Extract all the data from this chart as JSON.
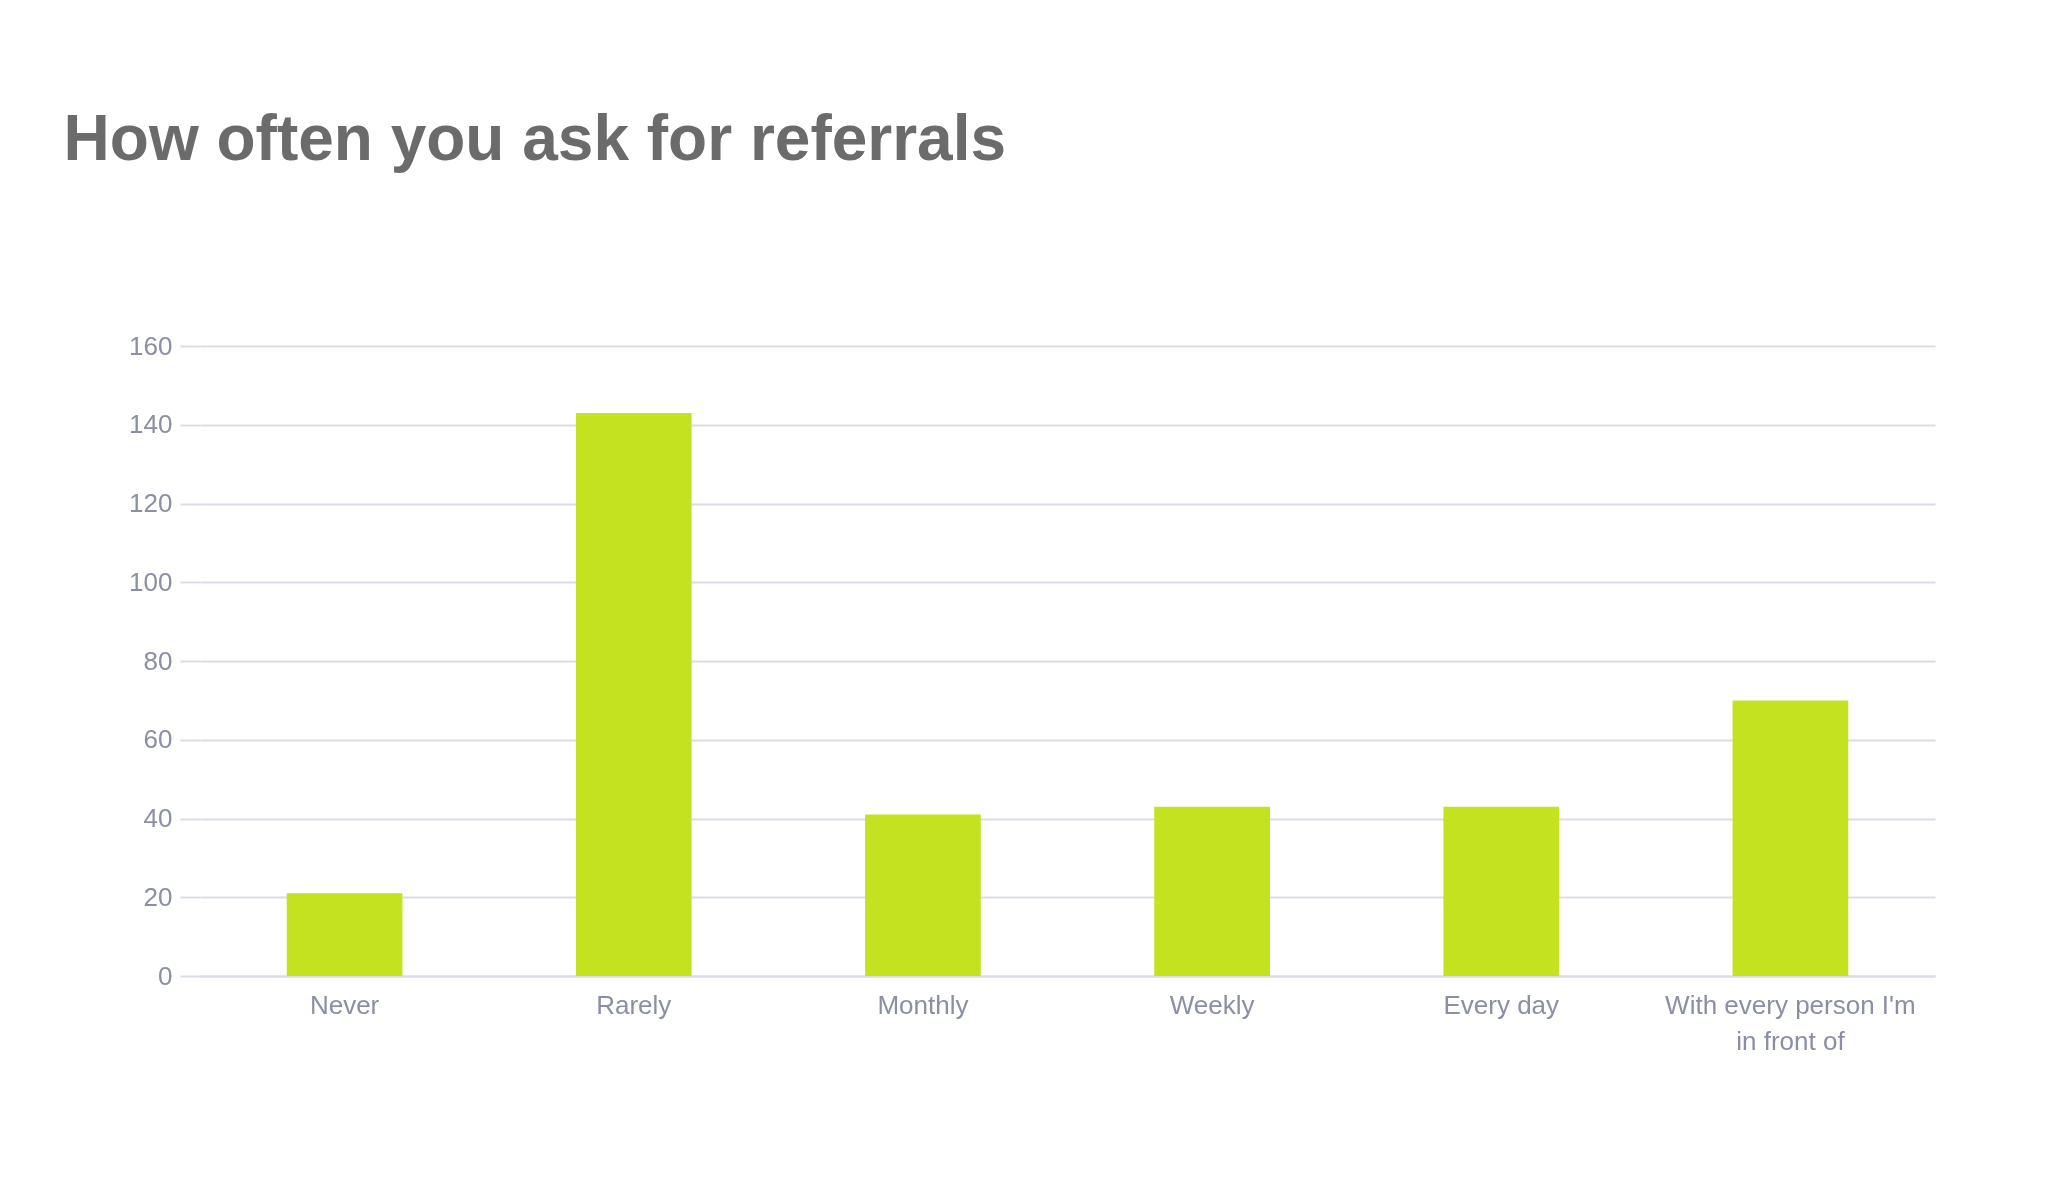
{
  "chart_data": {
    "type": "bar",
    "title": "How often you ask for referrals",
    "categories": [
      "Never",
      "Rarely",
      "Monthly",
      "Weekly",
      "Every day",
      "With every person I'm in front of"
    ],
    "values": [
      21,
      143,
      41,
      43,
      43,
      70
    ],
    "color": "#c5e220",
    "ylim": [
      0,
      160
    ],
    "yticks": [
      0,
      20,
      40,
      60,
      80,
      100,
      120,
      140,
      160
    ],
    "grid": "y"
  }
}
